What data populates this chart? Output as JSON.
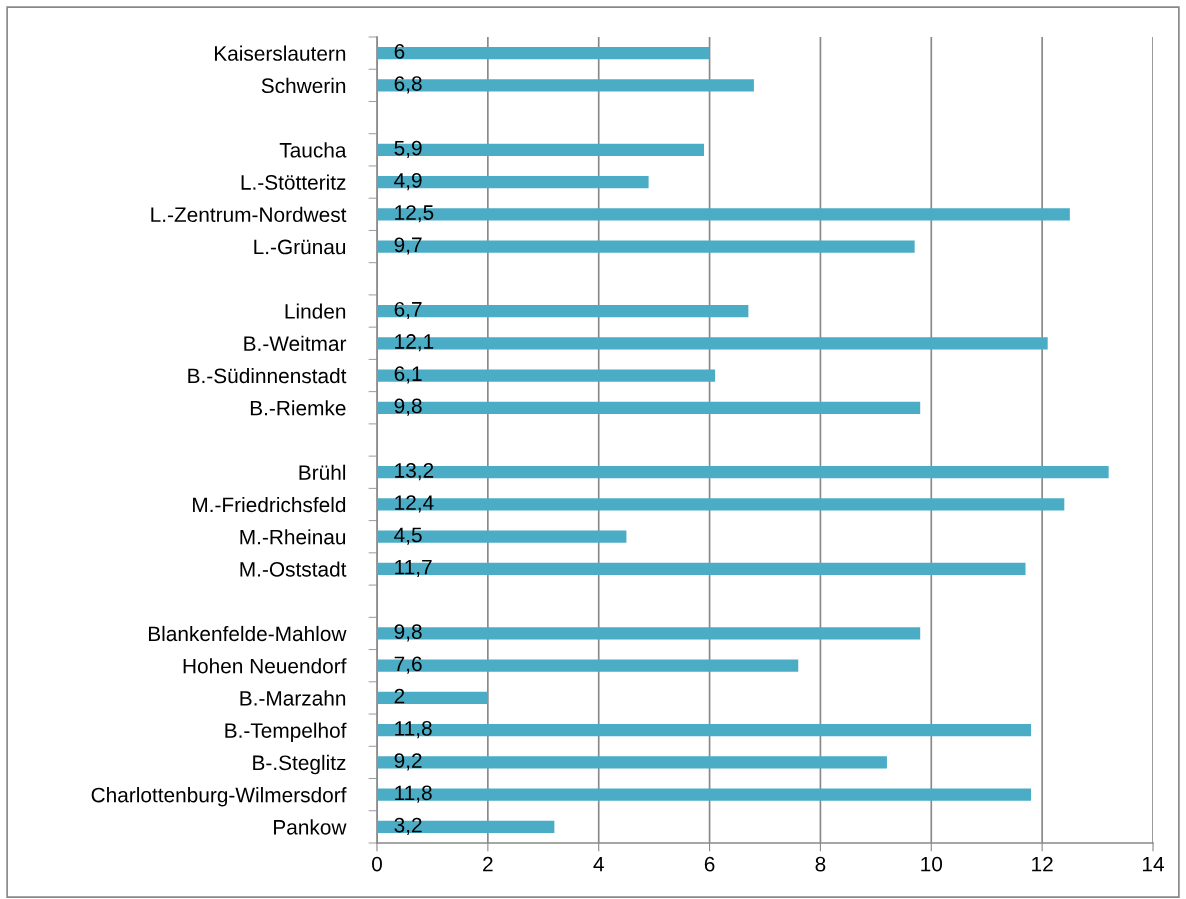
{
  "chart_data": {
    "type": "bar",
    "orientation": "horizontal",
    "categories": [
      "Kaiserslautern",
      "Schwerin",
      null,
      "Taucha",
      "L.-Stötteritz",
      "L.-Zentrum-Nordwest",
      "L.-Grünau",
      null,
      "Linden",
      "B.-Weitmar",
      "B.-Südinnenstadt",
      "B.-Riemke",
      null,
      "Brühl",
      "M.-Friedrichsfeld",
      "M.-Rheinau",
      "M.-Oststadt",
      null,
      "Blankenfelde-Mahlow",
      "Hohen Neuendorf",
      "B.-Marzahn",
      "B.-Tempelhof",
      "B-.Steglitz",
      "Charlottenburg-Wilmersdorf",
      "Pankow"
    ],
    "values": [
      6,
      6.8,
      null,
      5.9,
      4.9,
      12.5,
      9.7,
      null,
      6.7,
      12.1,
      6.1,
      9.8,
      null,
      13.2,
      12.4,
      4.5,
      11.7,
      null,
      9.8,
      7.6,
      2,
      11.8,
      9.2,
      11.8,
      3.2
    ],
    "value_labels": [
      "6",
      "6,8",
      null,
      "5,9",
      "4,9",
      "12,5",
      "9,7",
      null,
      "6,7",
      "12,1",
      "6,1",
      "9,8",
      null,
      "13,2",
      "12,4",
      "4,5",
      "11,7",
      null,
      "9,8",
      "7,6",
      "2",
      "11,8",
      "9,2",
      "11,8",
      "3,2"
    ],
    "color": "#4bacc6",
    "xlim": [
      0,
      14
    ],
    "xticks": [
      0,
      2,
      4,
      6,
      8,
      10,
      12,
      14
    ],
    "grid": "x"
  }
}
